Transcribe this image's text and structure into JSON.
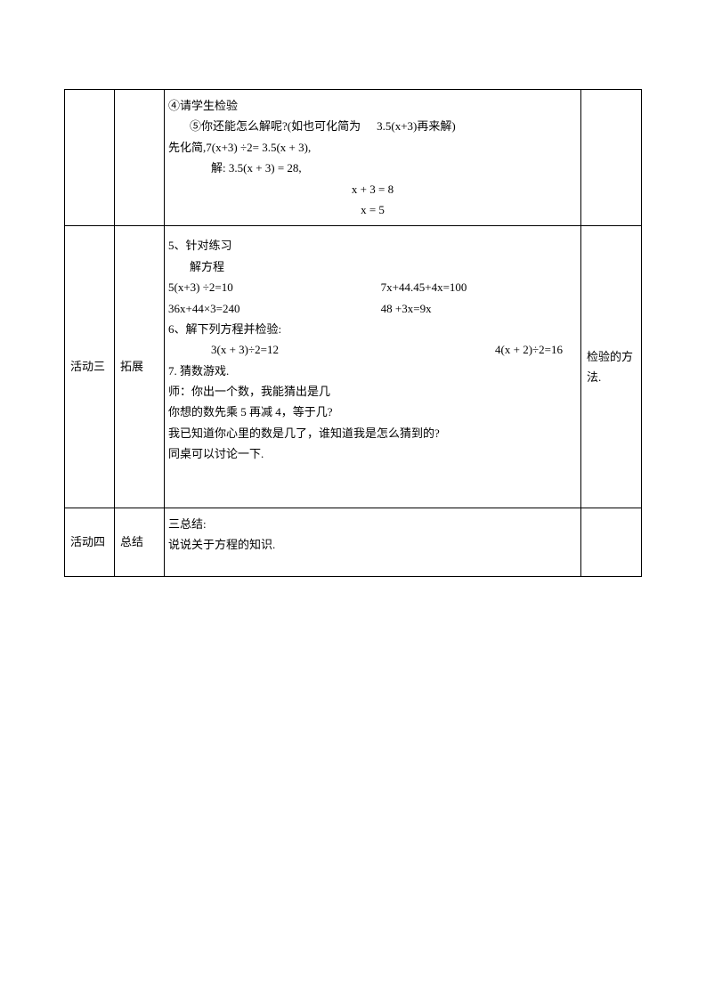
{
  "row1": {
    "content": {
      "line1": "④请学生检验",
      "line2_prefix": "⑤你还能怎么解呢?(如也可化简为",
      "line2_suffix": "3.5(x+3)再来解)",
      "line3": "先化简,7(x+3) ÷2= 3.5(x + 3),",
      "line4": "解: 3.5(x + 3) = 28,",
      "line5": "x + 3 = 8",
      "line6": "x = 5"
    }
  },
  "row2": {
    "col1": "活动三",
    "col2": "拓展",
    "content": {
      "line1": "5、针对练习",
      "line2": "解方程",
      "eq1_left": "5(x+3) ÷2=10",
      "eq1_right": "7x+44.45+4x=100",
      "eq2_left": "36x+44×3=240",
      "eq2_right": "48 +3x=9x",
      "line5": "6、解下列方程并检验:",
      "eq3_left": "3(x + 3)÷2=12",
      "eq3_right": "4(x + 2)÷2=16",
      "line7": "7. 猜数游戏.",
      "line8": "师：你出一个数，我能猜出是几",
      "line9": "你想的数先乘 5 再减 4，等于几?",
      "line10": "我已知道你心里的数是几了，谁知道我是怎么猜到的?",
      "line11": "同桌可以讨论一下."
    },
    "col4_line1": "检验的方",
    "col4_line2": "法."
  },
  "row3": {
    "col1": "活动四",
    "col2": "总结",
    "content": {
      "line1": "三总结:",
      "line2": "说说关于方程的知识."
    }
  }
}
